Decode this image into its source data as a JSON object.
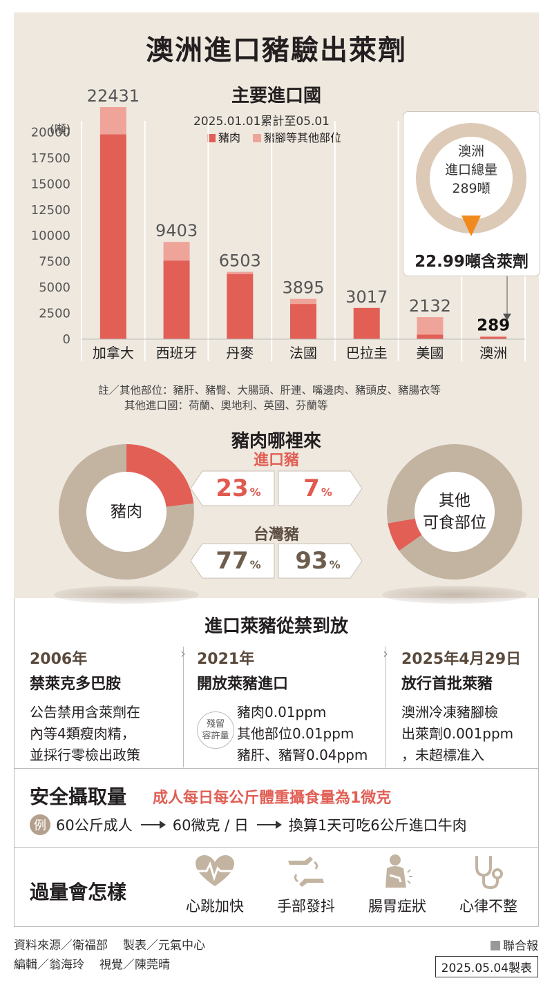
{
  "title": "澳洲進口豬驗出萊劑",
  "import_section": {
    "title": "主要進口國",
    "date_range": "2025.01.01累計至05.01",
    "unit": "(噸)",
    "legend": {
      "pork": "豬肉",
      "other": "豬腳等其他部位"
    },
    "note_line1": "註／其他部位：豬肝、豬臀、大腸頭、肝連、嘴邊肉、豬頭皮、豬腸衣等",
    "note_line2": "其他進口國：荷蘭、奧地利、英國、芬蘭等"
  },
  "callout": {
    "line1": "澳洲",
    "line2": "進口總量",
    "line3": "289噸",
    "highlight": "22.99噸含萊劑"
  },
  "colors": {
    "pork": "#e15f55",
    "other": "#efa49a",
    "ring": "#dccab6",
    "brown": "#c3b4a2",
    "orange": "#f08a1c"
  },
  "chart_data": [
    {
      "type": "bar",
      "stacked": true,
      "title": "主要進口國",
      "ylabel": "(噸)",
      "ylim": [
        0,
        22431
      ],
      "yticks": [
        0,
        2500,
        5000,
        7500,
        10000,
        12500,
        15000,
        17500,
        20000
      ],
      "grid": "vertical",
      "legend": "top-center",
      "categories": [
        "加拿大",
        "西班牙",
        "丹麥",
        "法國",
        "巴拉圭",
        "美國",
        "澳洲"
      ],
      "totals": [
        22431,
        9403,
        6503,
        3895,
        3017,
        2132,
        289
      ],
      "series": [
        {
          "name": "豬肉",
          "values": [
            19800,
            7600,
            6300,
            3400,
            3017,
            450,
            200
          ]
        },
        {
          "name": "豬腳等其他部位",
          "values": [
            2631,
            1803,
            203,
            495,
            0,
            1682,
            89
          ]
        }
      ]
    },
    {
      "type": "pie",
      "title": "豬肉",
      "labels": [
        "進口豬",
        "台灣豬"
      ],
      "values": [
        23,
        77
      ]
    },
    {
      "type": "pie",
      "title": "其他可食部位",
      "labels": [
        "進口豬",
        "台灣豬"
      ],
      "values": [
        7,
        93
      ]
    }
  ],
  "source_section": {
    "title": "豬肉哪裡來",
    "left_label": "豬肉",
    "right_label_1": "其他",
    "right_label_2": "可食部位",
    "import_label": "進口豬",
    "taiwan_label": "台灣豬",
    "pct_import_pork": "23",
    "pct_import_other": "7",
    "pct_tw_pork": "77",
    "pct_tw_other": "93",
    "pct_sign": "%"
  },
  "timeline": {
    "title": "進口萊豬從禁到放",
    "events": [
      {
        "year": "2006年",
        "head": "禁萊克多巴胺",
        "body": [
          "公告禁用含萊劑在",
          "內等4類瘦肉精，",
          "並採行零檢出政策"
        ]
      },
      {
        "year": "2021年",
        "head": "開放萊豬進口",
        "stamp1": "殘留",
        "stamp2": "容許量",
        "body": [
          "豬肉0.01ppm",
          "其他部位0.01ppm",
          "豬肝、豬腎0.04ppm"
        ]
      },
      {
        "year": "2025年4月29日",
        "head": "放行首批萊豬",
        "body": [
          "澳洲冷凍豬腳檢",
          "出萊劑0.001ppm",
          "，未超標准入"
        ]
      }
    ]
  },
  "safety": {
    "title": "安全攝取量",
    "statement": "成人每日每公斤體重攝食量為1微克",
    "example_badge": "例",
    "step1": "60公斤成人",
    "step2": "60微克 / 日",
    "step3": "換算1天可吃6公斤進口牛肉"
  },
  "overdose": {
    "title": "過量會怎樣",
    "symptoms": [
      {
        "label": "心跳加快",
        "icon": "heartbeat-icon"
      },
      {
        "label": "手部發抖",
        "icon": "shaking-hands-icon"
      },
      {
        "label": "腸胃症狀",
        "icon": "stomach-ache-icon"
      },
      {
        "label": "心律不整",
        "icon": "stethoscope-icon"
      }
    ]
  },
  "footer": {
    "source": "資料來源／衛福部",
    "producer": "製表／元氣中心",
    "editor": "編輯／翁海玲",
    "visual": "視覺／陳莞晴",
    "brand": "聯合報",
    "made": "2025.05.04製表"
  }
}
